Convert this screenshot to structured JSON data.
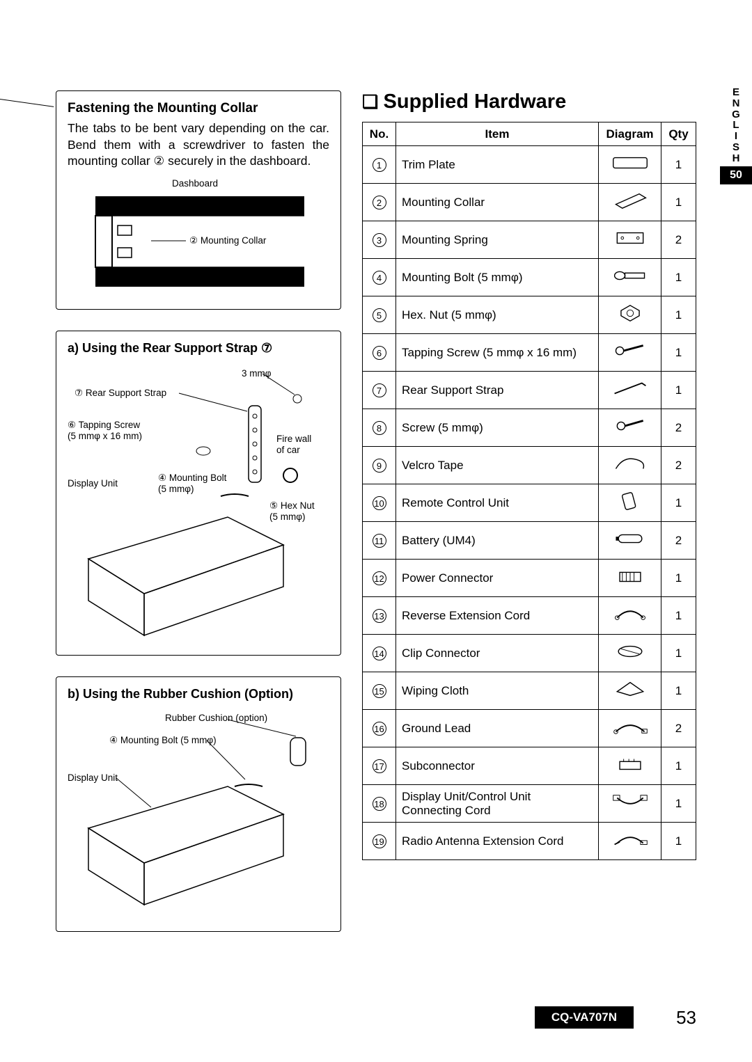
{
  "sideTab": {
    "language": "ENGLISH",
    "pageRef": "50"
  },
  "footer": {
    "model": "CQ-VA707N",
    "page": "53"
  },
  "leftPanels": {
    "fastening": {
      "title": "Fastening the Mounting Collar",
      "body": "The tabs to be bent vary depending on the car. Bend them with a screwdriver to fasten the mounting collar ② securely in the dashboard.",
      "labels": {
        "dashboard": "Dashboard",
        "collar": "② Mounting Collar"
      }
    },
    "strap": {
      "title": "a) Using the Rear Support Strap ⑦",
      "labels": {
        "threemm": "3 mmφ",
        "rearStrap": "⑦ Rear Support Strap",
        "tapping": "⑥ Tapping Screw",
        "tappingSize": "(5 mmφ x 16 mm)",
        "firewall1": "Fire wall",
        "firewall2": "of car",
        "display": "Display Unit",
        "mbolt": "④ Mounting Bolt",
        "mboltSize": "(5 mmφ)",
        "hexnut": "⑤ Hex Nut",
        "hexnutSize": "(5 mmφ)"
      }
    },
    "cushion": {
      "title": "b) Using the Rubber Cushion (Option)",
      "labels": {
        "rubber": "Rubber Cushion (option)",
        "mbolt": "④ Mounting Bolt (5 mmφ)",
        "display": "Display Unit"
      }
    }
  },
  "hardware": {
    "title": "Supplied Hardware",
    "headers": {
      "no": "No.",
      "item": "Item",
      "diagram": "Diagram",
      "qty": "Qty"
    },
    "rows": [
      {
        "no": "①",
        "num": 1,
        "item": "Trim Plate",
        "qty": "1"
      },
      {
        "no": "②",
        "num": 2,
        "item": "Mounting Collar",
        "qty": "1"
      },
      {
        "no": "③",
        "num": 3,
        "item": "Mounting Spring",
        "qty": "2"
      },
      {
        "no": "④",
        "num": 4,
        "item": "Mounting Bolt (5 mmφ)",
        "qty": "1"
      },
      {
        "no": "⑤",
        "num": 5,
        "item": "Hex. Nut (5 mmφ)",
        "qty": "1"
      },
      {
        "no": "⑥",
        "num": 6,
        "item": "Tapping Screw (5 mmφ x 16 mm)",
        "qty": "1"
      },
      {
        "no": "⑦",
        "num": 7,
        "item": "Rear Support Strap",
        "qty": "1"
      },
      {
        "no": "⑧",
        "num": 8,
        "item": "Screw (5 mmφ)",
        "qty": "2"
      },
      {
        "no": "⑨",
        "num": 9,
        "item": "Velcro Tape",
        "qty": "2"
      },
      {
        "no": "⑩",
        "num": 10,
        "item": "Remote Control Unit",
        "qty": "1"
      },
      {
        "no": "⑪",
        "num": 11,
        "item": "Battery (UM4)",
        "qty": "2"
      },
      {
        "no": "⑫",
        "num": 12,
        "item": "Power Connector",
        "qty": "1"
      },
      {
        "no": "⑬",
        "num": 13,
        "item": "Reverse Extension Cord",
        "qty": "1"
      },
      {
        "no": "⑭",
        "num": 14,
        "item": "Clip Connector",
        "qty": "1"
      },
      {
        "no": "⑮",
        "num": 15,
        "item": "Wiping Cloth",
        "qty": "1"
      },
      {
        "no": "⑯",
        "num": 16,
        "item": "Ground Lead",
        "qty": "2"
      },
      {
        "no": "⑰",
        "num": 17,
        "item": "Subconnector",
        "qty": "1"
      },
      {
        "no": "⑱",
        "num": 18,
        "item": "Display Unit/Control Unit Connecting Cord",
        "qty": "1"
      },
      {
        "no": "⑲",
        "num": 19,
        "item": "Radio Antenna Extension Cord",
        "qty": "1"
      }
    ]
  },
  "style": {
    "pageWidth": 1080,
    "pageHeight": 1526,
    "textColor": "#000000",
    "bg": "#ffffff",
    "tabBg": "#000000",
    "tabFg": "#ffffff",
    "borderColor": "#000000",
    "titleFontSize": 29,
    "bodyFontSize": 17.5,
    "tableFontSize": 17
  }
}
